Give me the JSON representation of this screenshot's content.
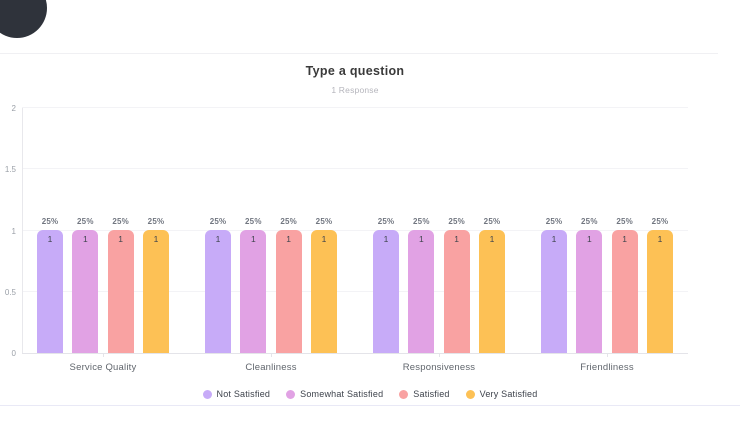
{
  "header": {
    "title": "Type a question",
    "subtitle": "1 Response"
  },
  "chart_data": {
    "type": "bar",
    "title": "Type a question",
    "subtitle": "1 Response",
    "categories": [
      "Service Quality",
      "Cleanliness",
      "Responsiveness",
      "Friendliness"
    ],
    "series": [
      {
        "name": "Not Satisfied",
        "color": "#c7abf8",
        "values": [
          1,
          1,
          1,
          1
        ],
        "percents": [
          "25%",
          "25%",
          "25%",
          "25%"
        ]
      },
      {
        "name": "Somewhat Satisfied",
        "color": "#e1a2e4",
        "values": [
          1,
          1,
          1,
          1
        ],
        "percents": [
          "25%",
          "25%",
          "25%",
          "25%"
        ]
      },
      {
        "name": "Satisfied",
        "color": "#f9a2a2",
        "values": [
          1,
          1,
          1,
          1
        ],
        "percents": [
          "25%",
          "25%",
          "25%",
          "25%"
        ]
      },
      {
        "name": "Very Satisfied",
        "color": "#fdc155",
        "values": [
          1,
          1,
          1,
          1
        ],
        "percents": [
          "25%",
          "25%",
          "25%",
          "25%"
        ]
      }
    ],
    "ylim": [
      0,
      2
    ],
    "yticks": [
      0,
      0.5,
      1,
      1.5,
      2
    ],
    "grid": true,
    "legend_position": "bottom"
  },
  "colors": {
    "avatar_bubble": "#2f333b",
    "top_divider": "#f0f0f3",
    "bottom_divider": "#e9e9f6",
    "gridline": "#f3f3f6",
    "axis_line": "#e4e4e9"
  }
}
